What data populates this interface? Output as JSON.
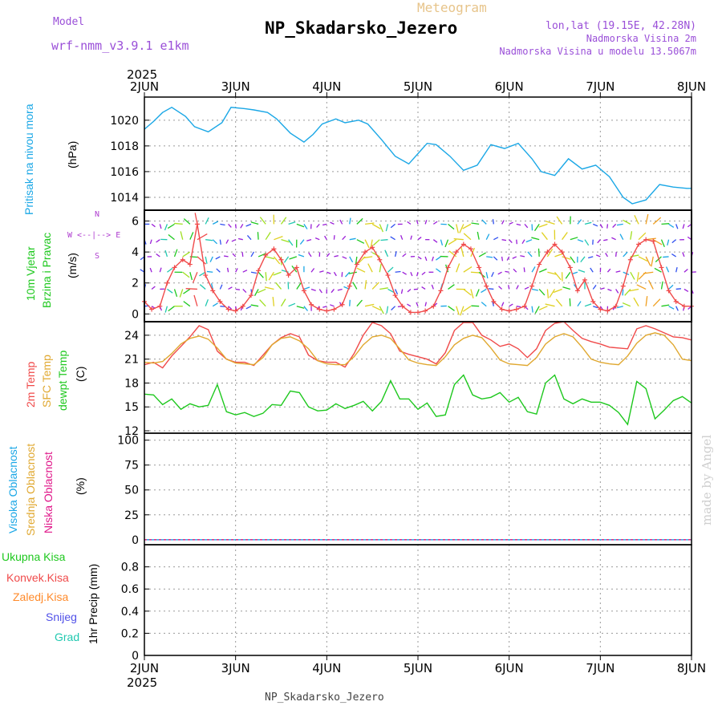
{
  "header": {
    "title": "NP_Skadarsko_Jezero",
    "chart_name": "Meteogram",
    "model_label": "Model",
    "model_name": "wrf-nmm_v3.9.1 e1km",
    "location": "lon,lat (19.15E, 42.28N)",
    "elevation": "Nadmorska Visina 2m",
    "model_elevation": "Nadmorska Visina u modelu 13.5067m",
    "footer": "NP_Skadarsko_Jezero",
    "watermark": "made by Angel"
  },
  "axis": {
    "year": "2025",
    "day_labels": [
      "2JUN",
      "3JUN",
      "4JUN",
      "5JUN",
      "6JUN",
      "7JUN",
      "8JUN"
    ]
  },
  "colors": {
    "pressure": "#1aa7e6",
    "temp_2m": "#f04a4a",
    "sfc_temp": "#e0a830",
    "dewpoint": "#1ec81e",
    "cloud_high": "#1aa7e6",
    "cloud_mid": "#e0a830",
    "cloud_low": "#e0188a",
    "precip_total": "#1ec81e",
    "precip_conv": "#f04a4a",
    "precip_frz": "#ff8a2a",
    "precip_snow": "#5050e8",
    "precip_graupel": "#20c8b0",
    "wind_label": "#1ec81e",
    "compass": "#b040d0"
  },
  "chart_data": [
    {
      "type": "line",
      "name": "pressure",
      "ylabel_lines": [
        "Pritisak na nivou mora"
      ],
      "unit": "(hPa)",
      "ylim": [
        1013,
        1021.8
      ],
      "yticks": [
        1014,
        1016,
        1018,
        1020
      ],
      "grid": true,
      "x": [
        0,
        0.1,
        0.2,
        0.3,
        0.45,
        0.55,
        0.7,
        0.85,
        0.95,
        1.1,
        1.2,
        1.35,
        1.45,
        1.6,
        1.75,
        1.85,
        1.95,
        2.1,
        2.2,
        2.35,
        2.45,
        2.6,
        2.75,
        2.9,
        3.0,
        3.1,
        3.2,
        3.35,
        3.5,
        3.65,
        3.8,
        3.95,
        4.1,
        4.25,
        4.35,
        4.5,
        4.65,
        4.8,
        4.95,
        5.1,
        5.25,
        5.35,
        5.5,
        5.65,
        5.8,
        5.95,
        6.0
      ],
      "series": [
        {
          "values": [
            1019.3,
            1019.9,
            1020.6,
            1021.0,
            1020.3,
            1019.5,
            1019.1,
            1019.8,
            1021.0,
            1020.9,
            1020.8,
            1020.6,
            1020.1,
            1019.0,
            1018.3,
            1018.9,
            1019.7,
            1020.1,
            1019.8,
            1020.0,
            1019.7,
            1018.5,
            1017.2,
            1016.6,
            1017.4,
            1018.2,
            1018.1,
            1017.2,
            1016.1,
            1016.5,
            1018.1,
            1017.8,
            1018.2,
            1017.0,
            1016.0,
            1015.7,
            1017.0,
            1016.2,
            1016.5,
            1015.6,
            1014.0,
            1013.5,
            1013.8,
            1015.0,
            1014.8,
            1014.7,
            1014.7
          ]
        }
      ]
    },
    {
      "type": "line",
      "name": "wind",
      "ylabel_lines": [
        "10m Vjetar",
        "Brzina i Pravac"
      ],
      "unit": "(m/s)",
      "compass": "W <--|--> E",
      "compass_n": "N",
      "compass_s": "S",
      "ylim": [
        -0.5,
        6.7
      ],
      "yticks": [
        0,
        2,
        4,
        6
      ],
      "grid": true,
      "x": [
        0,
        0.08,
        0.17,
        0.25,
        0.33,
        0.42,
        0.5,
        0.58,
        0.67,
        0.75,
        0.83,
        0.92,
        1.0,
        1.08,
        1.17,
        1.25,
        1.33,
        1.42,
        1.5,
        1.58,
        1.67,
        1.75,
        1.83,
        1.92,
        2.0,
        2.08,
        2.17,
        2.25,
        2.33,
        2.42,
        2.5,
        2.58,
        2.67,
        2.75,
        2.83,
        2.92,
        3.0,
        3.08,
        3.17,
        3.25,
        3.33,
        3.42,
        3.5,
        3.58,
        3.67,
        3.75,
        3.83,
        3.92,
        4.0,
        4.08,
        4.17,
        4.25,
        4.33,
        4.42,
        4.5,
        4.58,
        4.67,
        4.75,
        4.83,
        4.92,
        5.0,
        5.08,
        5.17,
        5.25,
        5.33,
        5.42,
        5.5,
        5.58,
        5.67,
        5.75,
        5.83,
        5.92,
        6.0
      ],
      "series": [
        {
          "values": [
            0.8,
            0.3,
            0.5,
            2.0,
            3.0,
            3.5,
            3.2,
            5.8,
            2.5,
            1.5,
            0.8,
            0.3,
            0.2,
            0.5,
            1.2,
            2.8,
            3.8,
            4.2,
            3.5,
            2.5,
            3.0,
            1.5,
            0.6,
            0.3,
            0.2,
            0.3,
            0.6,
            1.8,
            3.2,
            4.0,
            4.3,
            3.5,
            2.5,
            1.2,
            0.5,
            0.1,
            0.1,
            0.2,
            0.5,
            1.5,
            3.0,
            4.0,
            4.5,
            4.2,
            3.0,
            1.8,
            0.8,
            0.3,
            0.2,
            0.3,
            0.5,
            1.8,
            3.2,
            4.0,
            4.5,
            4.0,
            3.0,
            1.5,
            2.2,
            0.8,
            0.3,
            0.2,
            0.5,
            1.8,
            3.5,
            4.5,
            4.8,
            4.7,
            3.0,
            1.5,
            0.8,
            0.5,
            0.5
          ]
        }
      ]
    },
    {
      "type": "line",
      "name": "temperature",
      "ylabel_lines": [
        "2m Temp",
        "SFC Temp",
        "dewpt Temp"
      ],
      "unit": "(C)",
      "ylim": [
        11.7,
        25.7
      ],
      "yticks": [
        12,
        15,
        18,
        21,
        24
      ],
      "grid": true,
      "x": [
        0,
        0.1,
        0.2,
        0.3,
        0.4,
        0.5,
        0.6,
        0.7,
        0.8,
        0.9,
        1.0,
        1.1,
        1.2,
        1.3,
        1.4,
        1.5,
        1.6,
        1.7,
        1.8,
        1.9,
        2.0,
        2.1,
        2.2,
        2.3,
        2.4,
        2.5,
        2.6,
        2.7,
        2.8,
        2.9,
        3.0,
        3.1,
        3.2,
        3.3,
        3.4,
        3.5,
        3.6,
        3.7,
        3.8,
        3.9,
        4.0,
        4.1,
        4.2,
        4.3,
        4.4,
        4.5,
        4.6,
        4.7,
        4.8,
        4.9,
        5.0,
        5.1,
        5.2,
        5.3,
        5.4,
        5.5,
        5.6,
        5.7,
        5.8,
        5.9,
        6.0
      ],
      "series": [
        {
          "values": [
            20.3,
            20.6,
            19.9,
            21.4,
            22.6,
            23.8,
            25.2,
            24.7,
            22.0,
            21.0,
            20.6,
            20.6,
            20.2,
            21.5,
            22.8,
            23.7,
            24.2,
            23.8,
            21.5,
            20.8,
            20.6,
            20.6,
            20.0,
            21.7,
            24.0,
            25.6,
            25.2,
            24.2,
            22.0,
            21.6,
            21.3,
            21.0,
            20.4,
            21.8,
            24.6,
            25.6,
            25.6,
            24.0,
            23.4,
            22.6,
            22.9,
            22.3,
            21.2,
            22.3,
            24.6,
            25.5,
            25.7,
            24.6,
            23.6,
            23.2,
            22.9,
            22.5,
            22.4,
            22.3,
            24.8,
            25.2,
            24.8,
            24.3,
            23.8,
            23.7,
            23.4
          ]
        },
        {
          "values": [
            20.6,
            20.5,
            20.7,
            21.7,
            22.9,
            23.6,
            23.9,
            23.5,
            22.4,
            21.0,
            20.5,
            20.4,
            20.3,
            21.2,
            22.8,
            23.6,
            23.8,
            23.3,
            22.3,
            20.8,
            20.4,
            20.3,
            20.3,
            21.3,
            22.8,
            23.8,
            24.0,
            23.6,
            22.3,
            20.9,
            20.5,
            20.3,
            20.2,
            21.3,
            22.8,
            23.6,
            24.0,
            23.7,
            22.4,
            20.9,
            20.4,
            20.3,
            20.2,
            21.2,
            22.9,
            23.8,
            24.2,
            23.8,
            22.5,
            21.0,
            20.6,
            20.4,
            20.3,
            21.4,
            23.0,
            24.0,
            24.3,
            24.0,
            22.8,
            21.0,
            20.8
          ]
        },
        {
          "values": [
            16.6,
            16.5,
            15.3,
            16.0,
            14.7,
            15.4,
            15.0,
            15.2,
            17.8,
            14.4,
            14.0,
            14.3,
            13.8,
            14.2,
            15.3,
            15.2,
            17.0,
            16.8,
            15.0,
            14.5,
            14.6,
            15.4,
            14.8,
            15.2,
            15.7,
            14.5,
            15.7,
            18.3,
            16.0,
            16.0,
            14.7,
            15.5,
            13.8,
            14.0,
            17.8,
            19.0,
            16.5,
            16.0,
            16.2,
            16.8,
            15.6,
            16.2,
            14.4,
            14.1,
            18.0,
            19.0,
            16.0,
            15.4,
            16.0,
            15.6,
            15.6,
            15.2,
            14.3,
            12.8,
            18.2,
            17.3,
            13.5,
            14.6,
            15.8,
            16.3,
            15.5
          ]
        }
      ]
    },
    {
      "type": "line",
      "name": "cloud_cover",
      "ylabel_lines": [
        "Visoka Oblacnost",
        "Srednja Oblacnost",
        "Niska Oblacnost"
      ],
      "unit": "(%)",
      "ylim": [
        -5,
        107
      ],
      "yticks": [
        0,
        25,
        50,
        75,
        100
      ],
      "grid": true,
      "x": [
        0,
        6
      ],
      "series": [
        {
          "values": [
            0,
            0
          ]
        },
        {
          "values": [
            0,
            0
          ]
        },
        {
          "values": [
            0,
            0
          ]
        }
      ]
    },
    {
      "type": "bar",
      "name": "precipitation",
      "ylabel": "1hr Precip (mm)",
      "legend": [
        "Ukupna Kisa",
        "Konvek.Kisa",
        "Zaledj.Kisa",
        "Snijeg",
        "Grad"
      ],
      "ylim": [
        0,
        1.0
      ],
      "yticks": [
        0,
        0.2,
        0.4,
        0.6,
        0.8
      ],
      "grid": true,
      "x": [
        0,
        6
      ],
      "series": [
        {
          "values": [
            0,
            0
          ]
        }
      ]
    }
  ]
}
